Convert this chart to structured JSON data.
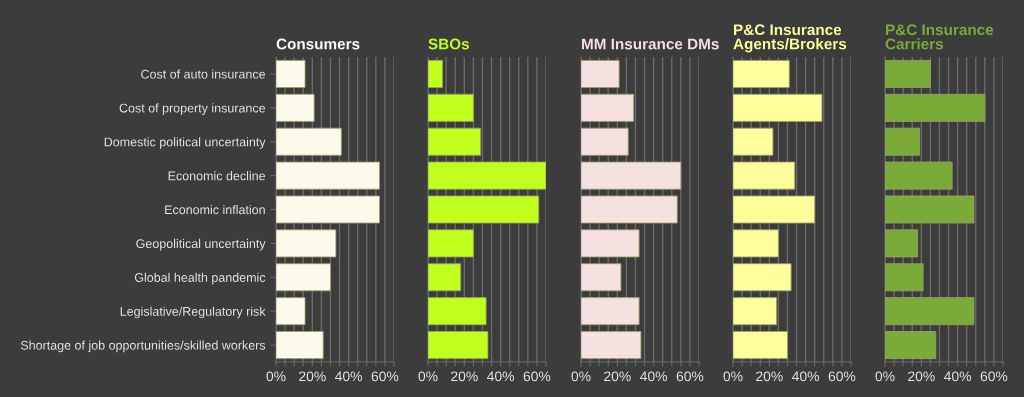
{
  "chart_data": [
    {
      "type": "bar",
      "orientation": "horizontal",
      "title": "Consumers",
      "categories": [
        "Cost of auto insurance",
        "Cost of property insurance",
        "Domestic political uncertainty",
        "Economic decline",
        "Economic inflation",
        "Geopolitical uncertainty",
        "Global health pandemic",
        "Legislative/Regulatory risk",
        "Shortage of job opportunities/skilled workers"
      ],
      "values": [
        16,
        21,
        36,
        57,
        57,
        33,
        30,
        16,
        26
      ],
      "color": "#fefaeb",
      "xlim": [
        0,
        65
      ],
      "xticks": [
        {
          "value": 0,
          "label": "0%"
        },
        {
          "value": 5,
          "label": null
        },
        {
          "value": 10,
          "label": null
        },
        {
          "value": 15,
          "label": null
        },
        {
          "value": 20,
          "label": "20%"
        },
        {
          "value": 25,
          "label": null
        },
        {
          "value": 30,
          "label": null
        },
        {
          "value": 35,
          "label": null
        },
        {
          "value": 40,
          "label": "40%"
        },
        {
          "value": 45,
          "label": null
        },
        {
          "value": 50,
          "label": null
        },
        {
          "value": 55,
          "label": null
        },
        {
          "value": 60,
          "label": "60%"
        },
        {
          "value": 65,
          "label": null
        }
      ],
      "grid": "x"
    },
    {
      "type": "bar",
      "orientation": "horizontal",
      "title": "SBOs",
      "values": [
        8,
        25,
        29,
        65,
        61,
        25,
        18,
        32,
        33
      ],
      "color": "#c1ff1c",
      "xlim": [
        0,
        65
      ],
      "xticks": [
        {
          "value": 0,
          "label": "0%"
        },
        {
          "value": 5,
          "label": null
        },
        {
          "value": 10,
          "label": null
        },
        {
          "value": 15,
          "label": null
        },
        {
          "value": 20,
          "label": "20%"
        },
        {
          "value": 25,
          "label": null
        },
        {
          "value": 30,
          "label": null
        },
        {
          "value": 35,
          "label": null
        },
        {
          "value": 40,
          "label": "40%"
        },
        {
          "value": 45,
          "label": null
        },
        {
          "value": 50,
          "label": null
        },
        {
          "value": 55,
          "label": null
        },
        {
          "value": 60,
          "label": "60%"
        },
        {
          "value": 65,
          "label": null
        }
      ],
      "grid": "x",
      "tick_labels": "x"
    },
    {
      "type": "bar",
      "orientation": "horizontal",
      "title": "MM Insurance DMs",
      "values": [
        21,
        29,
        26,
        55,
        53,
        32,
        22,
        32,
        33
      ],
      "color": "#f6e1e1",
      "xlim": [
        0,
        65
      ],
      "xticks": [
        {
          "value": 0,
          "label": "0%"
        },
        {
          "value": 5,
          "label": null
        },
        {
          "value": 10,
          "label": null
        },
        {
          "value": 15,
          "label": null
        },
        {
          "value": 20,
          "label": "20%"
        },
        {
          "value": 25,
          "label": null
        },
        {
          "value": 30,
          "label": null
        },
        {
          "value": 35,
          "label": null
        },
        {
          "value": 40,
          "label": "40%"
        },
        {
          "value": 45,
          "label": null
        },
        {
          "value": 50,
          "label": null
        },
        {
          "value": 55,
          "label": null
        },
        {
          "value": 60,
          "label": "60%"
        },
        {
          "value": 65,
          "label": null
        }
      ],
      "grid": "x",
      "tick_labels": "x"
    },
    {
      "type": "bar",
      "orientation": "horizontal",
      "title": "P&C Insurance\nAgents/Brokers",
      "values": [
        31,
        49,
        22,
        34,
        45,
        25,
        32,
        24,
        30
      ],
      "color": "#fdff9a",
      "xlim": [
        0,
        65
      ],
      "xticks": [
        {
          "value": 0,
          "label": "0%"
        },
        {
          "value": 5,
          "label": null
        },
        {
          "value": 10,
          "label": null
        },
        {
          "value": 15,
          "label": null
        },
        {
          "value": 20,
          "label": "20%"
        },
        {
          "value": 25,
          "label": null
        },
        {
          "value": 30,
          "label": null
        },
        {
          "value": 35,
          "label": null
        },
        {
          "value": 40,
          "label": "40%"
        },
        {
          "value": 45,
          "label": null
        },
        {
          "value": 50,
          "label": null
        },
        {
          "value": 55,
          "label": null
        },
        {
          "value": 60,
          "label": "60%"
        },
        {
          "value": 65,
          "label": null
        }
      ],
      "grid": "x",
      "tick_labels": "x"
    },
    {
      "type": "bar",
      "orientation": "horizontal",
      "title": "P&C Insurance\nCarriers",
      "values": [
        25,
        55,
        19,
        37,
        49,
        18,
        21,
        49,
        28
      ],
      "color": "#7aaa38",
      "xlim": [
        0,
        65
      ],
      "xticks": [
        {
          "value": 0,
          "label": "0%"
        },
        {
          "value": 5,
          "label": null
        },
        {
          "value": 10,
          "label": null
        },
        {
          "value": 15,
          "label": null
        },
        {
          "value": 20,
          "label": "20%"
        },
        {
          "value": 25,
          "label": null
        },
        {
          "value": 30,
          "label": null
        },
        {
          "value": 35,
          "label": null
        },
        {
          "value": 40,
          "label": "40%"
        },
        {
          "value": 45,
          "label": null
        },
        {
          "value": 50,
          "label": null
        },
        {
          "value": 55,
          "label": null
        },
        {
          "value": 60,
          "label": "60%"
        },
        {
          "value": 65,
          "label": null
        }
      ],
      "grid": "x",
      "tick_labels": "x"
    }
  ]
}
